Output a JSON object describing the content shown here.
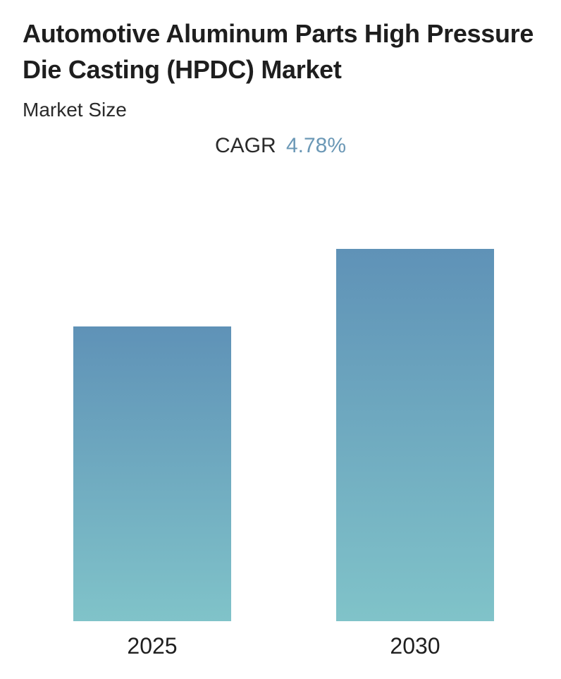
{
  "title": "Automotive Aluminum Parts High Pressure Die Casting (HPDC) Market",
  "subtitle": "Market Size",
  "cagr": {
    "label": "CAGR",
    "value": "4.78%"
  },
  "colors": {
    "bar_top": "#5f92b7",
    "bar_bottom": "#80c3c9",
    "cagr_accent": "#6b98b6"
  },
  "chart_data": {
    "type": "bar",
    "categories": [
      "2025",
      "2030"
    ],
    "values": [
      418,
      528
    ],
    "title": "Automotive Aluminum Parts High Pressure Die Casting (HPDC) Market",
    "subtitle": "Market Size",
    "xlabel": "",
    "ylabel": "",
    "ylim": [
      0,
      560
    ],
    "grid": false,
    "value_note": "relative bar heights; no values printed"
  }
}
